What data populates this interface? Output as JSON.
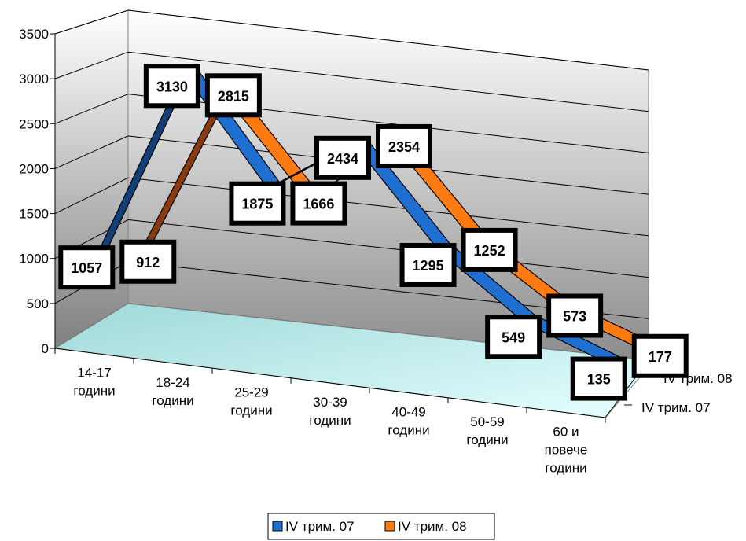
{
  "chart_data": {
    "type": "line",
    "style": "3d",
    "categories": [
      [
        "14-17",
        "години"
      ],
      [
        "18-24",
        "години"
      ],
      [
        "25-29",
        "години"
      ],
      [
        "30-39",
        "години"
      ],
      [
        "40-49",
        "години"
      ],
      [
        "50-59",
        "години"
      ],
      [
        "60 и",
        "повече",
        "години"
      ]
    ],
    "series": [
      {
        "name": "IV трим. 07",
        "values": [
          1057,
          3130,
          1875,
          2434,
          1295,
          549,
          135
        ],
        "color": "#1f6fd0",
        "shade": "#123f78"
      },
      {
        "name": "IV трим. 08",
        "values": [
          912,
          2815,
          1666,
          2354,
          1252,
          573,
          177
        ],
        "color": "#ff7a10",
        "shade": "#8a3a10"
      }
    ],
    "ylim": [
      0,
      3500
    ],
    "yticks": [
      0,
      500,
      1000,
      1500,
      2000,
      2500,
      3000,
      3500
    ],
    "grid": true,
    "legend": "bottom",
    "data_labels": true,
    "floor_color": "#c8f0f0"
  }
}
